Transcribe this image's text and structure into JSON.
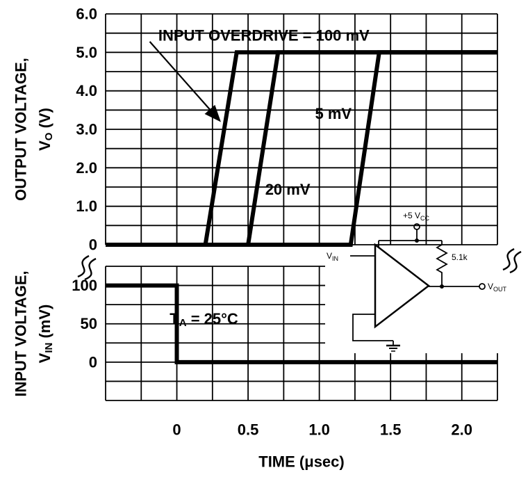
{
  "chart_data": {
    "type": "line",
    "xlabel": "TIME (μsec)",
    "x_range": [
      -0.5,
      2.25
    ],
    "x_grid_step": 0.25,
    "x_ticks": [
      {
        "value": 0,
        "label": "0"
      },
      {
        "value": 0.5,
        "label": "0.5"
      },
      {
        "value": 1,
        "label": "1.0"
      },
      {
        "value": 1.5,
        "label": "1.5"
      },
      {
        "value": 2,
        "label": "2.0"
      }
    ],
    "panels": [
      {
        "name": "output-voltage",
        "ylabel": "OUTPUT VOLTAGE, VO (V)",
        "y_range": [
          0,
          6
        ],
        "y_grid_step": 0.5,
        "y_ticks": [
          {
            "value": 6,
            "label": "6.0"
          },
          {
            "value": 5,
            "label": "5.0"
          },
          {
            "value": 4,
            "label": "4.0"
          },
          {
            "value": 3,
            "label": "3.0"
          },
          {
            "value": 2,
            "label": "2.0"
          },
          {
            "value": 1,
            "label": "1.0"
          },
          {
            "value": 0,
            "label": "0"
          }
        ],
        "series": [
          {
            "name": "overdrive-100mv",
            "points": [
              [
                -0.5,
                0
              ],
              [
                0.2,
                0
              ],
              [
                0.42,
                5
              ],
              [
                2.25,
                5
              ]
            ]
          },
          {
            "name": "overdrive-20mv",
            "points": [
              [
                -0.5,
                0
              ],
              [
                0.5,
                0
              ],
              [
                0.71,
                5
              ],
              [
                2.25,
                5
              ]
            ]
          },
          {
            "name": "overdrive-5mv",
            "points": [
              [
                -0.5,
                0
              ],
              [
                1.22,
                0
              ],
              [
                1.42,
                5
              ],
              [
                2.25,
                5
              ]
            ]
          }
        ],
        "annotations": [
          {
            "pre": "INPUT OVERDRIVE = 100 mV",
            "sub": "",
            "post": "",
            "x": -0.13,
            "y": 5.45
          },
          {
            "pre": "20 mV",
            "sub": "",
            "post": "",
            "x": 0.62,
            "y": 1.45
          },
          {
            "pre": "5 mV",
            "sub": "",
            "post": "",
            "x": 0.97,
            "y": 3.42
          }
        ],
        "arrow": {
          "from": [
            -0.19,
            5.28
          ],
          "to": [
            0.295,
            3.25
          ]
        }
      },
      {
        "name": "input-voltage",
        "ylabel": "INPUT VOLTAGE, VIN (mV)",
        "y_range": [
          -50,
          125
        ],
        "y_grid_step": 25,
        "y_ticks": [
          {
            "value": 100,
            "label": "100"
          },
          {
            "value": 50,
            "label": "50"
          },
          {
            "value": 0,
            "label": "0"
          }
        ],
        "series": [
          {
            "name": "input-step",
            "points": [
              [
                -0.5,
                100
              ],
              [
                0,
                100
              ],
              [
                0,
                0
              ],
              [
                2.25,
                0
              ]
            ]
          }
        ],
        "annotations": [
          {
            "pre": "T",
            "sub": "A",
            "post": " = 25°C",
            "x": -0.05,
            "y": 57
          }
        ]
      }
    ]
  },
  "axes": {
    "time_label": "TIME (μsec)",
    "output_label_line1": "OUTPUT VOLTAGE,",
    "output_label_line2": {
      "pre": "V",
      "sub": "O",
      "post": " (V)"
    },
    "input_label_line1": "INPUT VOLTAGE,",
    "input_label_line2": {
      "pre": "V",
      "sub": "IN",
      "post": " (mV)"
    }
  },
  "circuit": {
    "supply": {
      "pre": "+5 V",
      "sub": "CC"
    },
    "resistor": "5.1k",
    "input": {
      "pre": "V",
      "sub": "IN"
    },
    "output": {
      "pre": "V",
      "sub": "OUT"
    }
  }
}
